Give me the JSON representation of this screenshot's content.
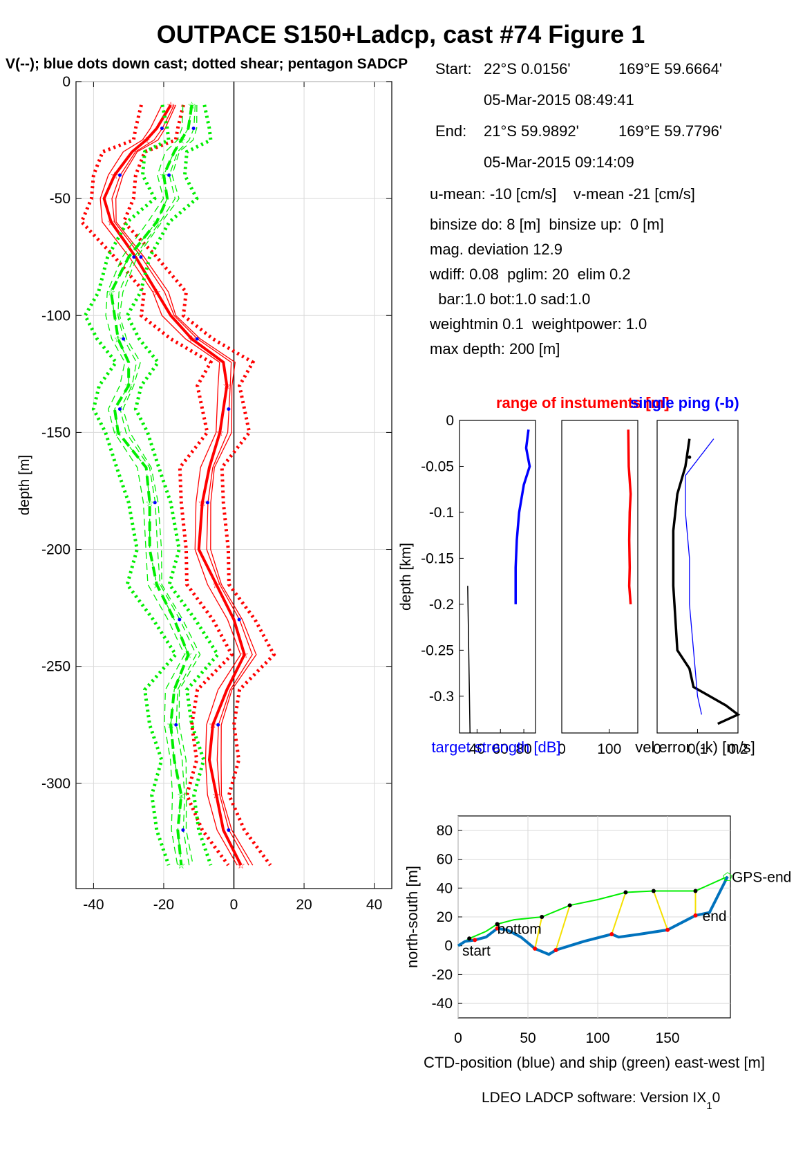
{
  "title": "OUTPACE S150+Ladcp, cast #74  Figure 1",
  "subtitle": "V(--); blue dots down cast; dotted shear; pentagon SADCP",
  "info": [
    {
      "label": "Start:",
      "lat": "22°S  0.0156'",
      "lon": "169°E 59.6664'"
    },
    {
      "time": "05-Mar-2015 08:49:41"
    },
    {
      "label": "End:",
      "lat": "21°S 59.9892'",
      "lon": "169°E 59.7796'"
    },
    {
      "time": "05-Mar-2015 09:14:09"
    }
  ],
  "params": [
    "u-mean: -10 [cm/s]    v-mean -21 [cm/s]",
    "binsize do: 8 [m]  binsize up:  0 [m]",
    "mag. deviation 12.9",
    "wdiff: 0.08  pglim: 20  elim 0.2",
    "  bar:1.0 bot:1.0 sad:1.0",
    "weightmin 0.1  weightpower: 1.0",
    "max depth: 200 [m]"
  ],
  "footer": "LDEO LADCP software: Version IX",
  "footer_sub": "1",
  "footer_tail": "0",
  "colors": {
    "u": "#ff0000",
    "v": "#00ee00",
    "ctd": "#0072bd",
    "yellow": "#f5e000",
    "blue": "#0000ff"
  },
  "chart_data": [
    {
      "type": "line",
      "ylabel": "depth [m]",
      "xlim": [
        -45,
        45
      ],
      "ylim": [
        -345,
        0
      ],
      "xticks": [
        "-40",
        "-20",
        "0",
        "20",
        "40"
      ],
      "yticks": [
        "0",
        "-50",
        "-100",
        "-150",
        "-200",
        "-250",
        "-300"
      ],
      "grid": true,
      "series": [
        {
          "color": "red",
          "depth": [
            -10,
            -20,
            -25,
            -30,
            -40,
            -50,
            -60,
            -75,
            -90,
            -100,
            -110,
            -120,
            -130,
            -140,
            -150,
            -165,
            -180,
            -200,
            -215,
            -230,
            -245,
            -260,
            -275,
            -290,
            -305,
            -320,
            -335
          ],
          "values": [
            -18,
            -22,
            -25,
            -29,
            -34,
            -37,
            -35,
            -28,
            -22,
            -18,
            -12,
            -3,
            -2,
            -3,
            -4,
            -7,
            -9,
            -10,
            -5,
            0,
            3,
            -2,
            -6,
            -7,
            -5,
            -3,
            2
          ]
        },
        {
          "color": "green",
          "depth": [
            -10,
            -20,
            -25,
            -30,
            -40,
            -50,
            -60,
            -75,
            -90,
            -100,
            -110,
            -120,
            -130,
            -140,
            -150,
            -165,
            -180,
            -200,
            -215,
            -230,
            -245,
            -260,
            -275,
            -290,
            -305,
            -320,
            -335
          ],
          "values": [
            -12,
            -13,
            -15,
            -17,
            -20,
            -19,
            -22,
            -30,
            -35,
            -34,
            -33,
            -30,
            -30,
            -34,
            -33,
            -25,
            -24,
            -24,
            -22,
            -17,
            -13,
            -17,
            -18,
            -17,
            -15,
            -16,
            -15
          ]
        }
      ]
    },
    {
      "type": "line",
      "title": "range of instuments [m]",
      "xlabel": "target strength [dB]",
      "ylabel": "depth [km]",
      "xticks": [
        "40",
        "60",
        "80"
      ],
      "yticks": [
        "0",
        "-0.05",
        "-0.1",
        "-0.15",
        "-0.2",
        "-0.25",
        "-0.3"
      ],
      "ylim": [
        -0.34,
        0
      ],
      "series": [
        {
          "color": "blue",
          "depth": [
            -0.01,
            -0.03,
            -0.05,
            -0.07,
            -0.1,
            -0.13,
            -0.16,
            -0.2
          ],
          "values": [
            84,
            82,
            85,
            80,
            76,
            74,
            73,
            73
          ]
        }
      ]
    },
    {
      "type": "line",
      "xticks": [
        "0",
        "100"
      ],
      "ylim": [
        -0.34,
        0
      ],
      "series": [
        {
          "color": "red",
          "depth": [
            -0.01,
            -0.05,
            -0.08,
            -0.1,
            -0.13,
            -0.16,
            -0.18,
            -0.2
          ],
          "values": [
            140,
            141,
            145,
            143,
            142,
            143,
            142,
            145
          ]
        }
      ]
    },
    {
      "type": "line",
      "title": "single ping (-b)",
      "xlabel": "vel error (-k) [m/s]",
      "xticks": [
        "0",
        "0.1",
        "0.2"
      ],
      "ylim": [
        -0.34,
        0
      ],
      "series": [
        {
          "color": "black",
          "depth": [
            -0.02,
            -0.05,
            -0.08,
            -0.12,
            -0.18,
            -0.25,
            -0.27,
            -0.29,
            -0.31,
            -0.32,
            -0.33
          ],
          "values": [
            0.08,
            0.07,
            0.05,
            0.04,
            0.04,
            0.05,
            0.08,
            0.09,
            0.17,
            0.2,
            0.15
          ]
        },
        {
          "color": "blue",
          "depth": [
            -0.02,
            -0.06,
            -0.1,
            -0.15,
            -0.2,
            -0.25,
            -0.3,
            -0.32
          ],
          "values": [
            0.14,
            0.07,
            0.07,
            0.08,
            0.08,
            0.09,
            0.1,
            0.11
          ]
        }
      ]
    },
    {
      "type": "line",
      "xlabel": "CTD-position (blue) and ship (green) east-west [m]",
      "ylabel": "north-south [m]",
      "xlim": [
        0,
        195
      ],
      "ylim": [
        -50,
        90
      ],
      "xticks": [
        "0",
        "50",
        "100",
        "150"
      ],
      "yticks": [
        "80",
        "60",
        "40",
        "20",
        "0",
        "-20",
        "-40"
      ],
      "annotations": [
        "GPS-end",
        "end",
        "bottom",
        "start"
      ],
      "series": [
        {
          "color": "blue",
          "x": [
            0,
            5,
            12,
            20,
            28,
            35,
            45,
            55,
            65,
            70,
            80,
            90,
            110,
            115,
            130,
            150,
            170,
            180,
            193
          ],
          "y": [
            0,
            3,
            4,
            6,
            12,
            11,
            6,
            -2,
            -6,
            -3,
            0,
            3,
            8,
            6,
            8,
            11,
            21,
            23,
            48
          ]
        },
        {
          "color": "green",
          "x": [
            0,
            8,
            20,
            28,
            40,
            60,
            80,
            100,
            120,
            140,
            170,
            193
          ],
          "y": [
            0,
            5,
            10,
            15,
            18,
            20,
            28,
            32,
            37,
            38,
            38,
            48
          ]
        }
      ]
    }
  ]
}
